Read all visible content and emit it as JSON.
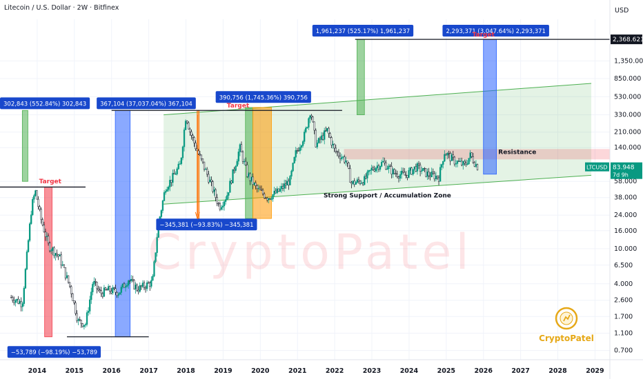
{
  "header": {
    "title": "Litecoin / U.S. Dollar · 2W · Bitfinex",
    "currency": "USD"
  },
  "chart_data": {
    "type": "candlestick",
    "title": "Litecoin / U.S. Dollar · 2W · Bitfinex",
    "y_scale": "log",
    "ylim": [
      0.55,
      4000
    ],
    "xlim": [
      2013.0,
      2029.4
    ],
    "y_ticks": [
      "2,368.621",
      "1,350.000",
      "850.000",
      "530.000",
      "330.000",
      "210.000",
      "140.000",
      "83.948",
      "58.000",
      "38.000",
      "24.000",
      "16.000",
      "10.000",
      "6.500",
      "4.000",
      "2.600",
      "1.700",
      "1.100",
      "0.700"
    ],
    "y_tick_values": [
      1350,
      850,
      530,
      330,
      210,
      140,
      58,
      38,
      24,
      16,
      10,
      6.5,
      4,
      2.6,
      1.7,
      1.1,
      0.7
    ],
    "x_ticks": [
      "2014",
      "2015",
      "2016",
      "2017",
      "2018",
      "2019",
      "2020",
      "2021",
      "2022",
      "2023",
      "2024",
      "2025",
      "2026",
      "2027",
      "2028",
      "2029"
    ],
    "price_path": [
      [
        2013.3,
        2.8
      ],
      [
        2013.6,
        2.4
      ],
      [
        2013.85,
        30
      ],
      [
        2013.95,
        45
      ],
      [
        2014.1,
        22
      ],
      [
        2014.3,
        11
      ],
      [
        2014.6,
        8
      ],
      [
        2014.9,
        3.5
      ],
      [
        2015.1,
        1.5
      ],
      [
        2015.3,
        1.4
      ],
      [
        2015.5,
        4.2
      ],
      [
        2015.7,
        3.1
      ],
      [
        2015.9,
        3.4
      ],
      [
        2016.2,
        3.2
      ],
      [
        2016.45,
        4.5
      ],
      [
        2016.7,
        3.5
      ],
      [
        2016.9,
        3.8
      ],
      [
        2017.1,
        4.2
      ],
      [
        2017.25,
        18
      ],
      [
        2017.45,
        50
      ],
      [
        2017.6,
        60
      ],
      [
        2017.85,
        90
      ],
      [
        2018.0,
        330
      ],
      [
        2018.1,
        220
      ],
      [
        2018.3,
        130
      ],
      [
        2018.6,
        65
      ],
      [
        2018.9,
        30
      ],
      [
        2019.1,
        40
      ],
      [
        2019.45,
        140
      ],
      [
        2019.65,
        70
      ],
      [
        2019.9,
        48
      ],
      [
        2020.2,
        38
      ],
      [
        2020.5,
        45
      ],
      [
        2020.8,
        60
      ],
      [
        2020.95,
        120
      ],
      [
        2021.2,
        200
      ],
      [
        2021.35,
        380
      ],
      [
        2021.5,
        150
      ],
      [
        2021.8,
        220
      ],
      [
        2022.0,
        130
      ],
      [
        2022.3,
        100
      ],
      [
        2022.45,
        55
      ],
      [
        2022.8,
        60
      ],
      [
        2023.0,
        80
      ],
      [
        2023.3,
        95
      ],
      [
        2023.6,
        72
      ],
      [
        2023.9,
        68
      ],
      [
        2024.2,
        85
      ],
      [
        2024.5,
        70
      ],
      [
        2024.8,
        65
      ],
      [
        2024.95,
        125
      ],
      [
        2025.2,
        100
      ],
      [
        2025.5,
        88
      ],
      [
        2025.65,
        115
      ],
      [
        2025.8,
        90
      ],
      [
        2025.85,
        84
      ]
    ],
    "last_price": "83.948",
    "last_symbol": "LTCUSD",
    "countdown": "7d 9h",
    "top_line_price": "2,368.621",
    "channel": {
      "upper": [
        [
          2017.4,
          330
        ],
        [
          2028.9,
          750
        ]
      ],
      "lower": [
        [
          2017.4,
          32
        ],
        [
          2028.9,
          68
        ]
      ]
    },
    "resistance_zone": {
      "x": [
        2022.25,
        2029.4
      ],
      "y": [
        103,
        135
      ]
    },
    "measure_boxes": [
      {
        "x": [
          2013.6,
          2013.75
        ],
        "y": [
          58,
          370
        ],
        "color": "#4caf50",
        "direction": "up"
      },
      {
        "x": [
          2014.2,
          2014.4
        ],
        "y": [
          1,
          50
        ],
        "color": "#f23645",
        "direction": "down"
      },
      {
        "x": [
          2016.1,
          2016.5
        ],
        "y": [
          1,
          370
        ],
        "color": "#2962ff",
        "direction": "up"
      },
      {
        "x": [
          2018.3,
          2018.33
        ],
        "y": [
          22,
          370
        ],
        "color": "#ff6d00",
        "direction": "down"
      },
      {
        "x": [
          2019.6,
          2019.8
        ],
        "y": [
          22,
          400
        ],
        "color": "#4caf50",
        "direction": "up"
      },
      {
        "x": [
          2019.8,
          2020.3
        ],
        "y": [
          22,
          400
        ],
        "color": "#ff9800",
        "direction": "up"
      },
      {
        "x": [
          2022.6,
          2022.8
        ],
        "y": [
          330,
          2368
        ],
        "color": "#4caf50",
        "direction": "up"
      },
      {
        "x": [
          2026.0,
          2026.35
        ],
        "y": [
          70,
          2368
        ],
        "color": "#2962ff",
        "direction": "up"
      }
    ],
    "horizontal_lines": [
      {
        "x": [
          2013.0,
          2015.3
        ],
        "y": 50
      },
      {
        "x": [
          2014.8,
          2017.0
        ],
        "y": 1
      },
      {
        "x": [
          2016.0,
          2022.2
        ],
        "y": 370
      },
      {
        "x": [
          2022.55,
          2029.4
        ],
        "y": 2368
      }
    ],
    "measure_labels": [
      {
        "text": "302,843 (552.84%) 302,843",
        "x": 2013.0,
        "y": 450
      },
      {
        "text": "367,104 (37,037.04%) 367,104",
        "x": 2015.6,
        "y": 450
      },
      {
        "text": "390,756 (1,745.36%) 390,756",
        "x": 2018.8,
        "y": 530
      },
      {
        "text": "1,961,237 (525.17%) 1,961,237",
        "x": 2021.4,
        "y": 3000
      },
      {
        "text": "2,293,371 (3,047.64%) 2,293,371",
        "x": 2024.9,
        "y": 3000
      },
      {
        "text": "−345,381 (−93.83%) −345,381",
        "x": 2017.2,
        "y": 19
      },
      {
        "text": "−53,789 (−98.19%) −53,789",
        "x": 2013.2,
        "y": 0.68
      }
    ],
    "annotations": [
      {
        "text": "Target",
        "x": 2014.05,
        "y": 55,
        "color": "#f23645"
      },
      {
        "text": "Target",
        "x": 2019.1,
        "y": 400,
        "color": "#f23645"
      },
      {
        "text": "Target",
        "x": 2025.7,
        "y": 2550,
        "color": "#f23645"
      },
      {
        "text": "Resistance",
        "x": 2026.4,
        "y": 118,
        "color": "#131722"
      },
      {
        "text": "Strong Support / Accumulation Zone",
        "x": 2021.7,
        "y": 38,
        "color": "#131722"
      }
    ]
  },
  "watermark": {
    "text": "CryptoPatel",
    "color": "#f23645"
  },
  "logo": {
    "text": "CryptoPatel",
    "color": "#e6a817"
  }
}
